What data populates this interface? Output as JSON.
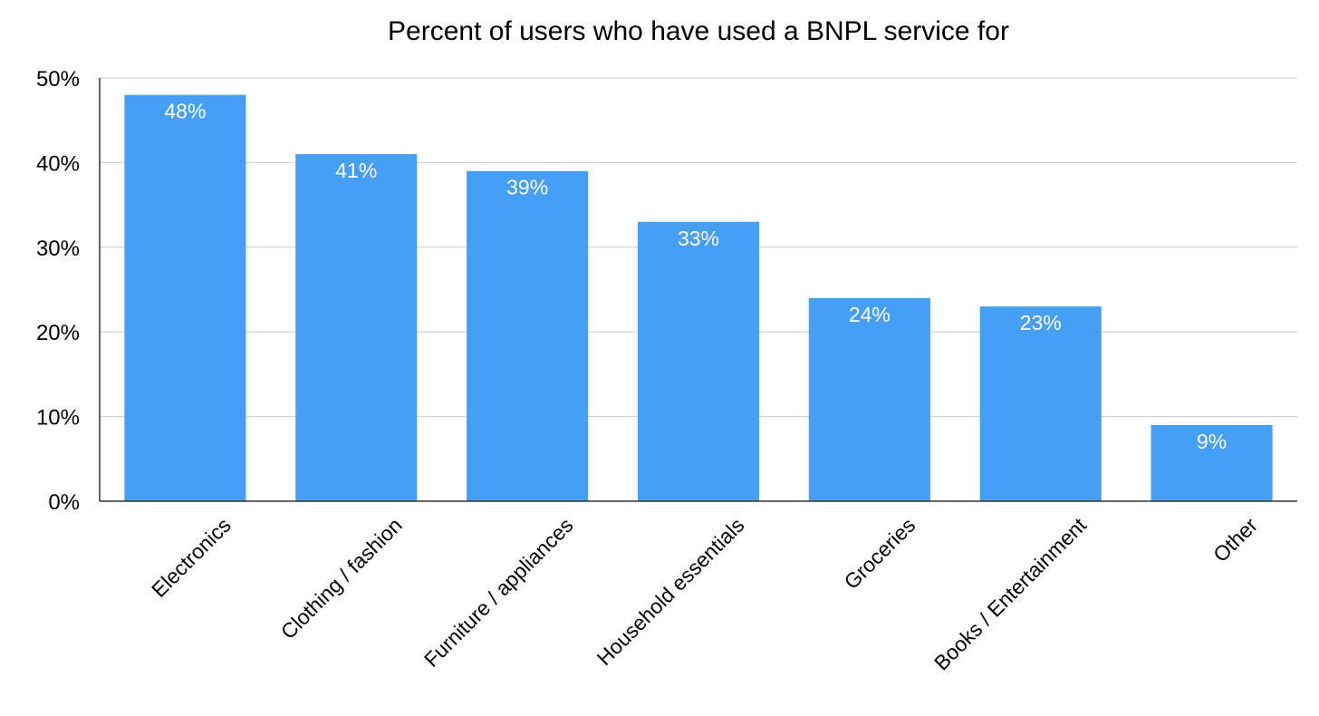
{
  "chart_data": {
    "type": "bar",
    "title": "Percent of users who have used a BNPL service for",
    "xlabel": "",
    "ylabel": "",
    "categories": [
      "Electronics",
      "Clothing / fashion",
      "Furniture / appliances",
      "Household essentials",
      "Groceries",
      "Books / Entertainment",
      "Other"
    ],
    "values": [
      48,
      41,
      39,
      33,
      24,
      23,
      9
    ],
    "data_labels": [
      "48%",
      "41%",
      "39%",
      "33%",
      "24%",
      "23%",
      "9%"
    ],
    "ylim": [
      0,
      50
    ],
    "yticks": [
      0,
      10,
      20,
      30,
      40,
      50
    ],
    "ytick_labels": [
      "0%",
      "10%",
      "20%",
      "30%",
      "40%",
      "50%"
    ],
    "grid": true,
    "legend": "none",
    "colors": {
      "bar": "#459ff5",
      "grid": "#cccccc",
      "axis": "#333333"
    }
  }
}
